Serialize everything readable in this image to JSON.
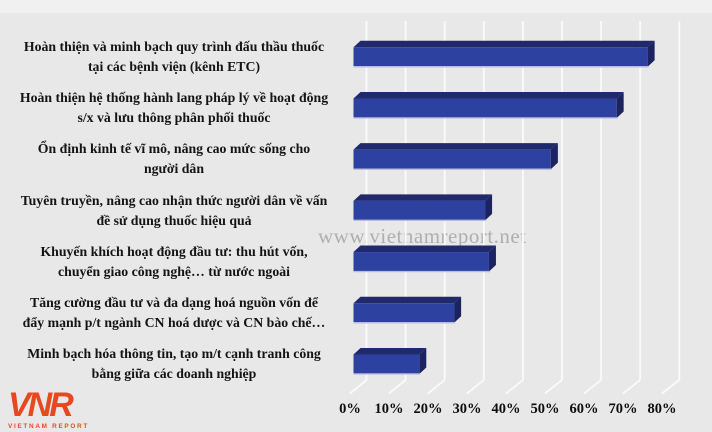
{
  "watermark": {
    "text": "www.vietnamreport.net"
  },
  "logo": {
    "monogram": "VNR",
    "caption": "VIETNAM REPORT"
  },
  "colors": {
    "background": "#e9e8e8",
    "top_band": "#f1f0f0",
    "bar_front": "#2c41a0",
    "bar_top": "#20296b",
    "bar_side": "#1b2361",
    "bar_bottom_edge": "#b6bcdc",
    "grid": "#fbfafa",
    "watermark": "#a5a5a5",
    "logo": "#e6491f",
    "label_text": "#141414"
  },
  "chart_data": {
    "type": "bar",
    "orientation": "horizontal",
    "style": "3d",
    "grid": true,
    "legend": false,
    "title": "",
    "xlabel": "",
    "ylabel": "",
    "xlim": [
      0,
      80
    ],
    "x_tick_step": 10,
    "x_ticks": [
      "0%",
      "10%",
      "20%",
      "30%",
      "40%",
      "50%",
      "60%",
      "70%",
      "80%"
    ],
    "categories": [
      "Hoàn thiện và minh bạch quy trình đấu thầu thuốc\ntại các bệnh viện (kênh ETC)",
      "Hoàn thiện hệ thống hành lang pháp lý về hoạt động\ns/x và lưu thông phân phối thuốc",
      "Ổn định kinh tế vĩ mô, nâng cao mức sống cho\nngười dân",
      "Tuyên truyền, nâng cao nhận thức người dân về vấn\nđề sử dụng thuốc hiệu quả",
      "Khuyến khích hoạt động đầu tư: thu hút vốn,\nchuyển giao công nghệ… từ nước ngoài",
      "Tăng cường đầu tư và đa dạng hoá nguồn vốn để\nđẩy mạnh p/t ngành CN hoá dược và CN bào chế…",
      "Minh bạch hóa thông tin, tạo m/t cạnh tranh công\nbằng giữa các doanh nghiệp"
    ],
    "values": [
      76,
      68,
      51,
      34,
      35,
      26,
      17
    ],
    "value_unit": "%"
  }
}
